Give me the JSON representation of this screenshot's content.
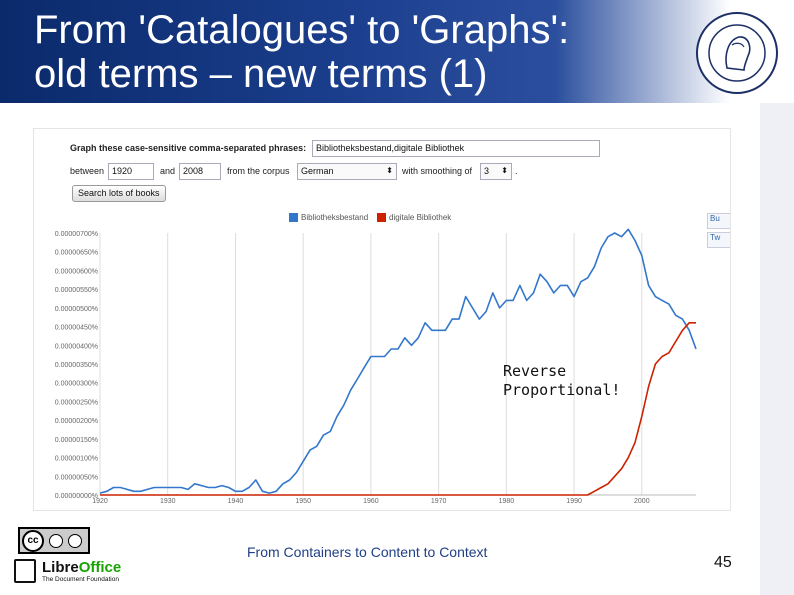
{
  "slide": {
    "title_line1": "From 'Catalogues' to 'Graphs':",
    "title_line2": "old terms – new terms (1)",
    "footer": "From Containers to Content to Context",
    "page_number": "45",
    "annotation_line1": "Reverse",
    "annotation_line2": "Proportional!",
    "cc_label": "cc",
    "libreoffice_name": "Libre",
    "libreoffice_name_accent": "Office",
    "libreoffice_sub": "The Document Foundation"
  },
  "ngram_form": {
    "label_phrases": "Graph these case-sensitive comma-separated phrases:",
    "phrases_value": "Bibliotheksbestand,digitale Bibliothek",
    "label_between": "between",
    "year_from": "1920",
    "label_and": "and",
    "year_to": "2008",
    "label_corpus": "from the corpus",
    "corpus_value": "German",
    "label_smoothing": "with smoothing of",
    "smoothing_value": "3",
    "period": ".",
    "search_button": "Search lots of books",
    "share_buttons": [
      "Bu",
      "Tw"
    ]
  },
  "chart_data": {
    "type": "line",
    "xlim": [
      1920,
      2008
    ],
    "ylim": [
      0,
      7e-06
    ],
    "x_ticks": [
      1920,
      1930,
      1940,
      1950,
      1960,
      1970,
      1980,
      1990,
      2000
    ],
    "x_tick_labels": [
      "1920",
      "1930",
      "1940",
      "1950",
      "1960",
      "1970",
      "1980",
      "1990",
      "2000"
    ],
    "y_ticks": [
      0,
      5e-07,
      1e-06,
      1.5e-06,
      2e-06,
      2.5e-06,
      3e-06,
      3.5e-06,
      4e-06,
      4.5e-06,
      5e-06,
      5.5e-06,
      6e-06,
      6.5e-06,
      7e-06
    ],
    "y_tick_labels": [
      "0.00000000%",
      "0.00000050%",
      "0.00000100%",
      "0.00000150%",
      "0.00000200%",
      "0.00000250%",
      "0.00000300%",
      "0.00000350%",
      "0.00000400%",
      "0.00000450%",
      "0.00000500%",
      "0.00000550%",
      "0.00000600%",
      "0.00000650%",
      "0.00000700%"
    ],
    "legend_placement": "top",
    "grid": "vertical",
    "series": [
      {
        "name": "Bibliotheksbestand",
        "color": "#3377cc",
        "x": [
          1920,
          1921,
          1922,
          1923,
          1924,
          1925,
          1926,
          1927,
          1928,
          1929,
          1930,
          1931,
          1932,
          1933,
          1934,
          1935,
          1936,
          1937,
          1938,
          1939,
          1940,
          1941,
          1942,
          1943,
          1944,
          1945,
          1946,
          1947,
          1948,
          1949,
          1950,
          1951,
          1952,
          1953,
          1954,
          1955,
          1956,
          1957,
          1958,
          1959,
          1960,
          1961,
          1962,
          1963,
          1964,
          1965,
          1966,
          1967,
          1968,
          1969,
          1970,
          1971,
          1972,
          1973,
          1974,
          1975,
          1976,
          1977,
          1978,
          1979,
          1980,
          1981,
          1982,
          1983,
          1984,
          1985,
          1986,
          1987,
          1988,
          1989,
          1990,
          1991,
          1992,
          1993,
          1994,
          1995,
          1996,
          1997,
          1998,
          1999,
          2000,
          2001,
          2002,
          2003,
          2004,
          2005,
          2006,
          2007,
          2008
        ],
        "values": [
          5e-08,
          1e-07,
          2e-07,
          2e-07,
          1.5e-07,
          1e-07,
          1e-07,
          1.5e-07,
          2e-07,
          2e-07,
          2e-07,
          2e-07,
          2e-07,
          1.5e-07,
          3e-07,
          2.5e-07,
          2e-07,
          2e-07,
          2.5e-07,
          2e-07,
          1e-07,
          1e-07,
          2e-07,
          4e-07,
          1e-07,
          5e-08,
          1e-07,
          3e-07,
          4e-07,
          6e-07,
          9e-07,
          1.2e-06,
          1.3e-06,
          1.6e-06,
          1.7e-06,
          2.1e-06,
          2.4e-06,
          2.8e-06,
          3.1e-06,
          3.4e-06,
          3.7e-06,
          3.7e-06,
          3.7e-06,
          3.9e-06,
          3.9e-06,
          4.2e-06,
          4e-06,
          4.2e-06,
          4.6e-06,
          4.4e-06,
          4.4e-06,
          4.4e-06,
          4.7e-06,
          4.7e-06,
          5.3e-06,
          5e-06,
          4.7e-06,
          4.9e-06,
          5.4e-06,
          5e-06,
          5.2e-06,
          5.2e-06,
          5.6e-06,
          5.2e-06,
          5.4e-06,
          5.9e-06,
          5.7e-06,
          5.4e-06,
          5.6e-06,
          5.6e-06,
          5.3e-06,
          5.7e-06,
          5.8e-06,
          6.1e-06,
          6.6e-06,
          6.9e-06,
          7e-06,
          6.9e-06,
          7.1e-06,
          6.8e-06,
          6.4e-06,
          5.6e-06,
          5.3e-06,
          5.2e-06,
          5.1e-06,
          4.8e-06,
          4.7e-06,
          4.4e-06,
          3.9e-06
        ]
      },
      {
        "name": "digitale Bibliothek",
        "color": "#cc2200",
        "x": [
          1920,
          1930,
          1940,
          1950,
          1960,
          1970,
          1980,
          1990,
          1992,
          1993,
          1994,
          1995,
          1996,
          1997,
          1998,
          1999,
          2000,
          2001,
          2002,
          2003,
          2004,
          2005,
          2006,
          2007,
          2008
        ],
        "values": [
          0,
          0,
          0,
          0,
          0,
          0,
          0,
          0,
          0,
          1e-07,
          2e-07,
          3e-07,
          5e-07,
          7e-07,
          1e-06,
          1.4e-06,
          2.1e-06,
          2.9e-06,
          3.5e-06,
          3.7e-06,
          3.8e-06,
          4.1e-06,
          4.4e-06,
          4.6e-06,
          4.6e-06
        ]
      }
    ]
  }
}
